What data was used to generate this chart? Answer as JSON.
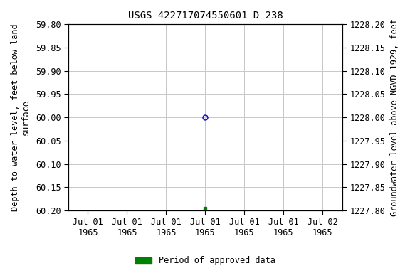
{
  "title": "USGS 422717074550601 D 238",
  "ylabel_left": "Depth to water level, feet below land\nsurface",
  "ylabel_right": "Groundwater level above NGVD 1929, feet",
  "ylim_left_top": 59.8,
  "ylim_left_bottom": 60.2,
  "ylim_right_top": 1228.2,
  "ylim_right_bottom": 1227.8,
  "yticks_left": [
    59.8,
    59.85,
    59.9,
    59.95,
    60.0,
    60.05,
    60.1,
    60.15,
    60.2
  ],
  "ytick_labels_left": [
    "59.80",
    "59.85",
    "59.90",
    "59.95",
    "60.00",
    "60.05",
    "60.10",
    "60.15",
    "60.20"
  ],
  "yticks_right": [
    1227.8,
    1227.85,
    1227.9,
    1227.95,
    1228.0,
    1228.05,
    1228.1,
    1228.15,
    1228.2
  ],
  "ytick_labels_right": [
    "1227.80",
    "1227.85",
    "1227.90",
    "1227.95",
    "1228.00",
    "1228.05",
    "1228.10",
    "1228.15",
    "1228.20"
  ],
  "data_blue_x": 3,
  "data_blue_y": 60.0,
  "data_green_x": 3,
  "data_green_y": 60.195,
  "xtick_positions": [
    0,
    1,
    2,
    3,
    4,
    5,
    6
  ],
  "xtick_labels": [
    "Jul 01\n1965",
    "Jul 01\n1965",
    "Jul 01\n1965",
    "Jul 01\n1965",
    "Jul 01\n1965",
    "Jul 01\n1965",
    "Jul 02\n1965"
  ],
  "xlim": [
    -0.5,
    6.5
  ],
  "background_color": "#ffffff",
  "grid_color": "#c8c8c8",
  "blue_marker_color": "#0000cc",
  "green_marker_color": "#008000",
  "legend_label": "Period of approved data",
  "title_fontsize": 10,
  "axis_label_fontsize": 8.5,
  "tick_fontsize": 8.5
}
